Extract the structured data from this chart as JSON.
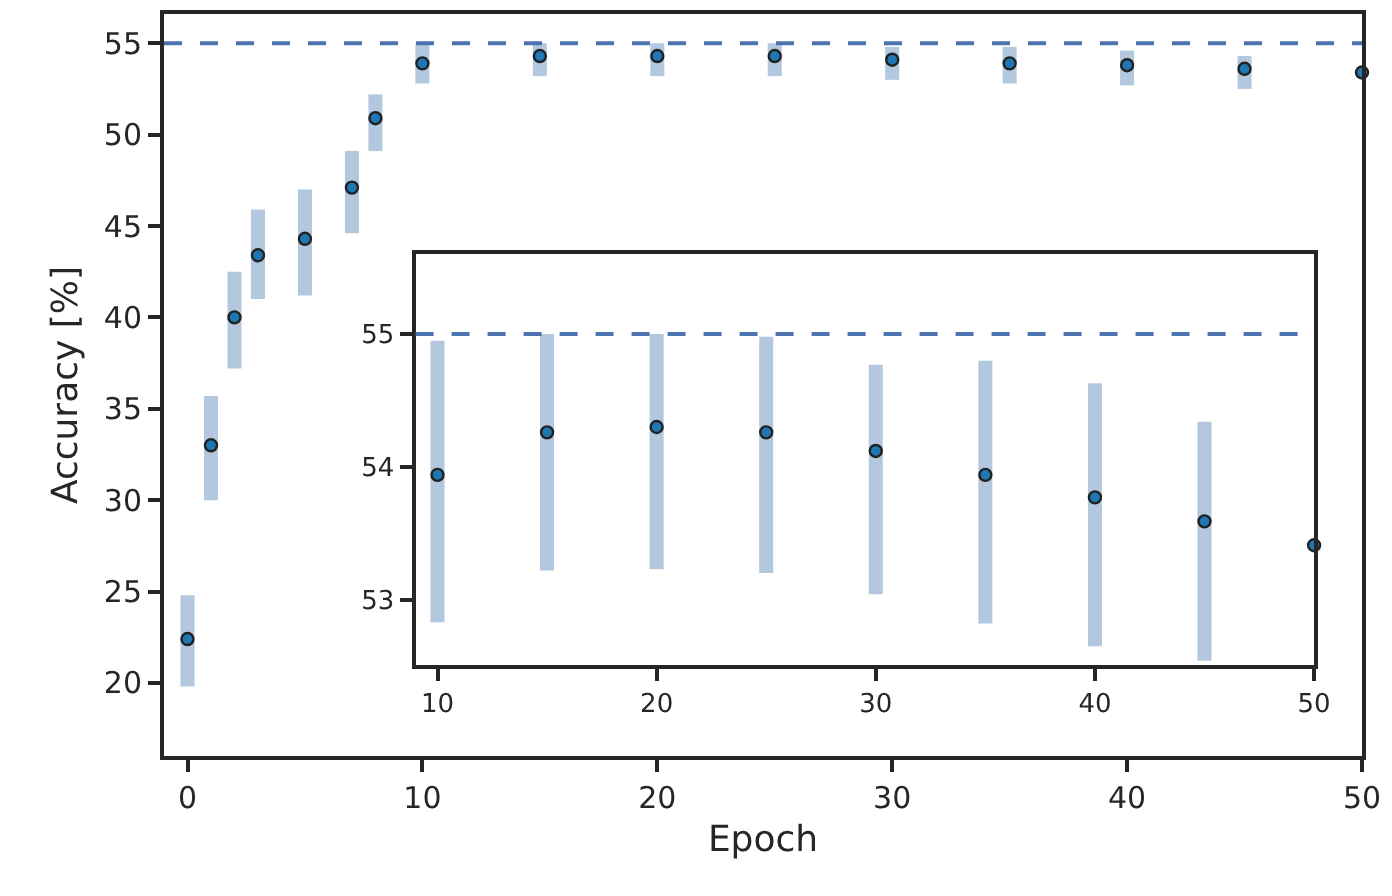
{
  "chart_data": [
    {
      "type": "scatter",
      "xlabel": "Epoch",
      "ylabel": "Accuracy [%]",
      "x": [
        0,
        1,
        2,
        3,
        5,
        7,
        8,
        10,
        15,
        20,
        25,
        30,
        35,
        40,
        45,
        50
      ],
      "series": [
        {
          "color": "#1f77b4",
          "values": [
            22.4,
            33.0,
            40.0,
            43.4,
            44.3,
            47.1,
            50.9,
            53.9,
            54.3,
            54.3,
            54.3,
            54.1,
            53.9,
            53.8,
            53.6,
            53.4
          ],
          "errors": [
            [
              19.8,
              24.8
            ],
            [
              30.0,
              35.7
            ],
            [
              37.2,
              42.5
            ],
            [
              41.0,
              45.9
            ],
            [
              41.2,
              47.0
            ],
            [
              44.6,
              49.1
            ],
            [
              49.1,
              52.2
            ],
            [
              52.8,
              55.0
            ],
            [
              53.2,
              55.0
            ],
            [
              53.2,
              55.0
            ],
            [
              53.2,
              55.0
            ],
            [
              53.0,
              54.8
            ],
            [
              52.8,
              54.8
            ],
            [
              52.7,
              54.6
            ],
            [
              52.5,
              54.3
            ],
            null
          ]
        }
      ],
      "xlim": [
        -1,
        50
      ],
      "xticks": [
        0,
        10,
        20,
        30,
        40,
        50
      ],
      "ylim": [
        16,
        56.6
      ],
      "yticks": [
        20,
        25,
        30,
        35,
        40,
        45,
        50,
        55
      ],
      "ref_lines": [
        {
          "axis": "y",
          "value": 55,
          "color": "#4c72b0",
          "line_style": "dashed"
        }
      ],
      "marker": "circle"
    },
    {
      "type": "scatter",
      "x": [
        10,
        15,
        20,
        25,
        30,
        35,
        40,
        45,
        50
      ],
      "series": [
        {
          "color": "#1f77b4",
          "values": [
            53.94,
            54.26,
            54.3,
            54.26,
            54.12,
            53.94,
            53.77,
            53.59,
            53.41
          ],
          "errors": [
            [
              52.83,
              54.95
            ],
            [
              53.22,
              55.0
            ],
            [
              53.23,
              55.0
            ],
            [
              53.2,
              54.98
            ],
            [
              53.04,
              54.77
            ],
            [
              52.82,
              54.8
            ],
            [
              52.65,
              54.63
            ],
            [
              52.54,
              54.34
            ],
            null
          ]
        }
      ],
      "xlim": [
        9,
        50
      ],
      "xticks": [
        10,
        20,
        30,
        40,
        50
      ],
      "ylim": [
        52.51,
        55.6
      ],
      "yticks": [
        53,
        54,
        55
      ],
      "ref_lines": [
        {
          "axis": "y",
          "value": 55,
          "color": "#4c72b0",
          "line_style": "dashed"
        }
      ],
      "marker": "circle"
    }
  ]
}
